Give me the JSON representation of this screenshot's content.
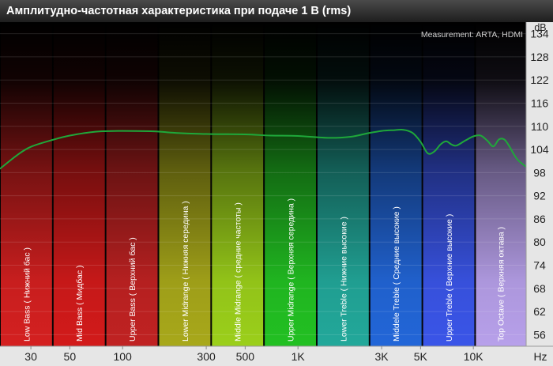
{
  "chart_data": {
    "type": "line",
    "title": "Амплитудно-частотная характеристика при подаче 1 В (rms)",
    "annotation": "Measurement: ARTA, HDMI",
    "xunit": "Hz",
    "yunit": "dB",
    "xscale": "log",
    "ylim": [
      53,
      137
    ],
    "xlim": [
      20,
      20000
    ],
    "grid": true,
    "yticks": [
      134,
      128,
      122,
      116,
      110,
      104,
      98,
      92,
      86,
      80,
      74,
      68,
      62,
      56
    ],
    "xticks": [
      {
        "value": 30,
        "label": "30"
      },
      {
        "value": 50,
        "label": "50"
      },
      {
        "value": 100,
        "label": "100"
      },
      {
        "value": 300,
        "label": "300"
      },
      {
        "value": 500,
        "label": "500"
      },
      {
        "value": 1000,
        "label": "1K"
      },
      {
        "value": 3000,
        "label": "3K"
      },
      {
        "value": 5000,
        "label": "5K"
      },
      {
        "value": 10000,
        "label": "10K"
      }
    ],
    "bands": [
      {
        "label": "Low Bass ( Нижний бас )",
        "from": 20,
        "to": 40,
        "color": "#d42020"
      },
      {
        "label": "Mid Bass ( Мидбас )",
        "from": 40,
        "to": 80,
        "color": "#d21a1a"
      },
      {
        "label": "Upper Bass ( Верхний бас )",
        "from": 80,
        "to": 160,
        "color": "#c02222"
      },
      {
        "label": "Lower Midrange ( Нижняя середина )",
        "from": 160,
        "to": 320,
        "color": "#a8a81a"
      },
      {
        "label": "Middle Midrange ( средние частоты )",
        "from": 320,
        "to": 640,
        "color": "#9bcf1a"
      },
      {
        "label": "Upper Midrange ( Верхняя середина )",
        "from": 640,
        "to": 1280,
        "color": "#22c022"
      },
      {
        "label": "Lower Treble ( Нижние высокие )",
        "from": 1280,
        "to": 2560,
        "color": "#22a89a"
      },
      {
        "label": "Middele Treble ( Средние высокие )",
        "from": 2560,
        "to": 5120,
        "color": "#2266d8"
      },
      {
        "label": "Upper Treble ( Верхние высокие )",
        "from": 5120,
        "to": 10240,
        "color": "#3a55e8"
      },
      {
        "label": "Top Octave ( Верхняя октава )",
        "from": 10240,
        "to": 20000,
        "color": "#b7a0ea"
      }
    ],
    "series": [
      {
        "color": "#1fa83a",
        "x": [
          20,
          25,
          30,
          40,
          50,
          70,
          100,
          150,
          200,
          300,
          500,
          700,
          1000,
          1500,
          2000,
          2500,
          3000,
          3500,
          4000,
          4500,
          5000,
          5500,
          6000,
          6500,
          7000,
          7500,
          8000,
          9000,
          10000,
          11000,
          12000,
          13000,
          14000,
          15000,
          16000,
          17000,
          18000,
          20000
        ],
        "y": [
          99,
          102.5,
          104.7,
          106.5,
          107.6,
          108.6,
          108.8,
          108.7,
          108.3,
          108.0,
          107.9,
          107.6,
          107.5,
          107.0,
          107.3,
          108.2,
          108.8,
          109.0,
          109.1,
          108.3,
          106.0,
          103.0,
          103.5,
          105.3,
          106.1,
          105.3,
          105.0,
          106.3,
          107.4,
          107.6,
          106.3,
          104.8,
          106.6,
          106.6,
          104.9,
          102.8,
          101.2,
          99.5
        ]
      }
    ]
  }
}
